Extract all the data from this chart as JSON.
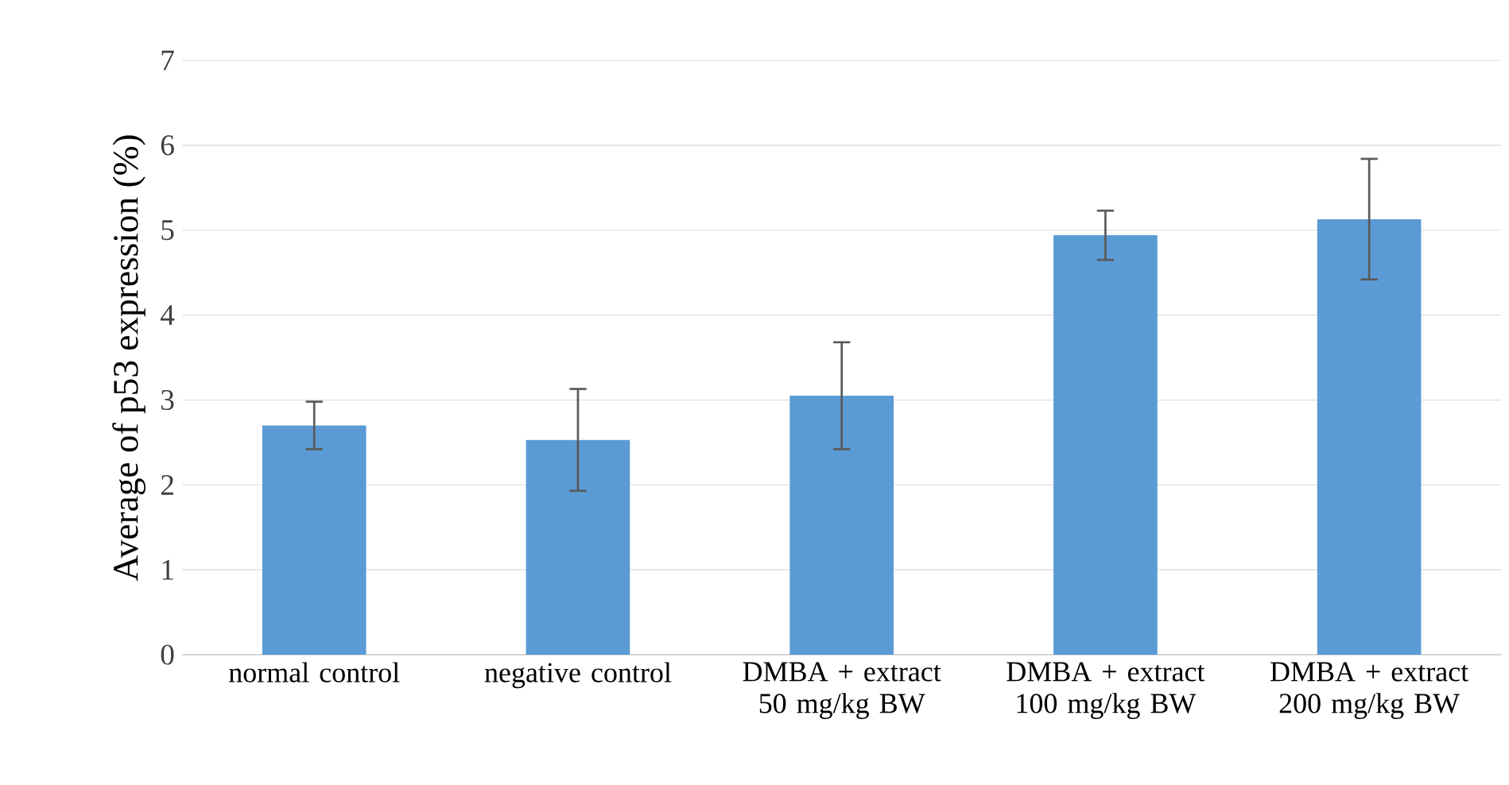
{
  "chart_data": {
    "type": "bar",
    "ylabel": "Average of p53 expression (%)",
    "categories": [
      "normal control",
      "negative control",
      "DMBA + extract 50 mg/kg BW",
      "DMBA + extract 100 mg/kg BW",
      "DMBA + extract 200 mg/kg BW"
    ],
    "values": [
      2.7,
      2.53,
      3.05,
      4.94,
      5.13
    ],
    "errors": [
      0.28,
      0.6,
      0.63,
      0.29,
      0.71
    ],
    "color": "#5b9bd5",
    "ylim": [
      0,
      7
    ],
    "yticks": [
      0,
      1,
      2,
      3,
      4,
      5,
      6,
      7
    ],
    "grid": "y"
  }
}
